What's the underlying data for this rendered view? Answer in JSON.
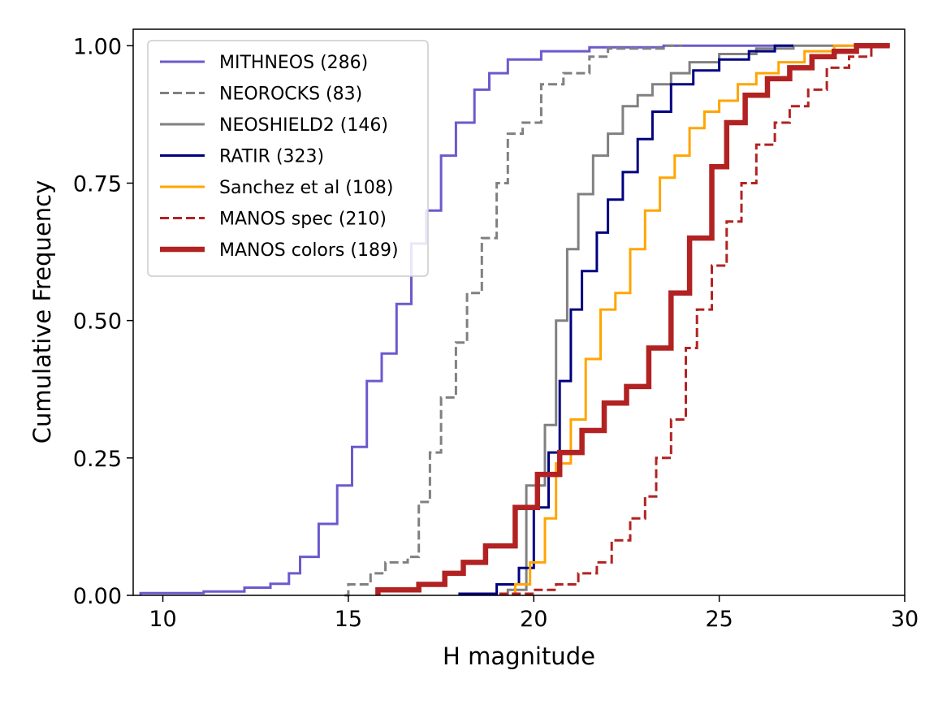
{
  "chart_data": {
    "type": "line",
    "subtype": "cumulative-step",
    "title": "",
    "xlabel": "H magnitude",
    "ylabel": "Cumulative Frequency",
    "xlim": [
      9.2,
      30
    ],
    "ylim": [
      0,
      1.03
    ],
    "xticks": [
      10,
      15,
      20,
      25,
      30
    ],
    "xtick_labels": [
      "10",
      "15",
      "20",
      "25",
      "30"
    ],
    "yticks": [
      0,
      0.25,
      0.5,
      0.75,
      1.0
    ],
    "ytick_labels": [
      "0.00",
      "0.25",
      "0.50",
      "0.75",
      "1.00"
    ],
    "grid": false,
    "legend_position": "top-left",
    "series": [
      {
        "name": "MITHNEOS (286)",
        "color": "#6a5acd",
        "style": "solid",
        "width": "normal",
        "points": [
          [
            9.4,
            0.0
          ],
          [
            9.4,
            0.004
          ],
          [
            11.1,
            0.004
          ],
          [
            11.1,
            0.007
          ],
          [
            12.2,
            0.007
          ],
          [
            12.2,
            0.014
          ],
          [
            12.9,
            0.014
          ],
          [
            12.9,
            0.021
          ],
          [
            13.4,
            0.021
          ],
          [
            13.4,
            0.04
          ],
          [
            13.7,
            0.04
          ],
          [
            13.7,
            0.07
          ],
          [
            14.2,
            0.07
          ],
          [
            14.2,
            0.13
          ],
          [
            14.7,
            0.13
          ],
          [
            14.7,
            0.2
          ],
          [
            15.1,
            0.2
          ],
          [
            15.1,
            0.27
          ],
          [
            15.5,
            0.27
          ],
          [
            15.5,
            0.39
          ],
          [
            15.9,
            0.39
          ],
          [
            15.9,
            0.44
          ],
          [
            16.3,
            0.44
          ],
          [
            16.3,
            0.53
          ],
          [
            16.7,
            0.53
          ],
          [
            16.7,
            0.64
          ],
          [
            17.1,
            0.64
          ],
          [
            17.1,
            0.7
          ],
          [
            17.5,
            0.7
          ],
          [
            17.5,
            0.8
          ],
          [
            17.9,
            0.8
          ],
          [
            17.9,
            0.86
          ],
          [
            18.4,
            0.86
          ],
          [
            18.4,
            0.92
          ],
          [
            18.8,
            0.92
          ],
          [
            18.8,
            0.95
          ],
          [
            19.3,
            0.95
          ],
          [
            19.3,
            0.975
          ],
          [
            20.2,
            0.975
          ],
          [
            20.2,
            0.99
          ],
          [
            21.5,
            0.99
          ],
          [
            21.5,
            0.997
          ],
          [
            23.5,
            0.997
          ],
          [
            23.5,
            1.0
          ],
          [
            27.0,
            1.0
          ]
        ]
      },
      {
        "name": "NEOROCKS (83)",
        "color": "#808080",
        "style": "dashed",
        "width": "normal",
        "points": [
          [
            14.9,
            0.0
          ],
          [
            15.0,
            0.0
          ],
          [
            15.0,
            0.02
          ],
          [
            15.6,
            0.02
          ],
          [
            15.6,
            0.04
          ],
          [
            16.0,
            0.04
          ],
          [
            16.0,
            0.06
          ],
          [
            16.6,
            0.06
          ],
          [
            16.6,
            0.07
          ],
          [
            16.9,
            0.07
          ],
          [
            16.9,
            0.17
          ],
          [
            17.2,
            0.17
          ],
          [
            17.2,
            0.26
          ],
          [
            17.5,
            0.26
          ],
          [
            17.5,
            0.36
          ],
          [
            17.9,
            0.36
          ],
          [
            17.9,
            0.46
          ],
          [
            18.2,
            0.46
          ],
          [
            18.2,
            0.55
          ],
          [
            18.6,
            0.55
          ],
          [
            18.6,
            0.65
          ],
          [
            19.0,
            0.65
          ],
          [
            19.0,
            0.75
          ],
          [
            19.3,
            0.75
          ],
          [
            19.3,
            0.84
          ],
          [
            19.7,
            0.84
          ],
          [
            19.7,
            0.86
          ],
          [
            20.2,
            0.86
          ],
          [
            20.2,
            0.93
          ],
          [
            20.8,
            0.93
          ],
          [
            20.8,
            0.95
          ],
          [
            21.5,
            0.95
          ],
          [
            21.5,
            0.98
          ],
          [
            22.0,
            0.98
          ],
          [
            22.0,
            0.995
          ],
          [
            23.5,
            0.995
          ],
          [
            23.5,
            1.0
          ],
          [
            24.0,
            1.0
          ]
        ]
      },
      {
        "name": "NEOSHIELD2 (146)",
        "color": "#808080",
        "style": "solid",
        "width": "normal",
        "points": [
          [
            19.3,
            0.0
          ],
          [
            19.3,
            0.01
          ],
          [
            19.8,
            0.01
          ],
          [
            19.8,
            0.2
          ],
          [
            20.3,
            0.2
          ],
          [
            20.3,
            0.31
          ],
          [
            20.6,
            0.31
          ],
          [
            20.6,
            0.5
          ],
          [
            20.9,
            0.5
          ],
          [
            20.9,
            0.63
          ],
          [
            21.2,
            0.63
          ],
          [
            21.2,
            0.73
          ],
          [
            21.6,
            0.73
          ],
          [
            21.6,
            0.8
          ],
          [
            22.0,
            0.8
          ],
          [
            22.0,
            0.84
          ],
          [
            22.4,
            0.84
          ],
          [
            22.4,
            0.89
          ],
          [
            22.8,
            0.89
          ],
          [
            22.8,
            0.91
          ],
          [
            23.2,
            0.91
          ],
          [
            23.2,
            0.93
          ],
          [
            23.7,
            0.93
          ],
          [
            23.7,
            0.95
          ],
          [
            24.2,
            0.95
          ],
          [
            24.2,
            0.97
          ],
          [
            25.0,
            0.97
          ],
          [
            25.0,
            0.985
          ],
          [
            26.0,
            0.985
          ],
          [
            26.0,
            0.995
          ],
          [
            27.0,
            0.995
          ],
          [
            27.0,
            1.0
          ],
          [
            28.5,
            1.0
          ]
        ]
      },
      {
        "name": "RATIR (323)",
        "color": "#000080",
        "style": "solid",
        "width": "normal",
        "points": [
          [
            18.0,
            0.0
          ],
          [
            18.0,
            0.003
          ],
          [
            19.0,
            0.003
          ],
          [
            19.0,
            0.02
          ],
          [
            19.6,
            0.02
          ],
          [
            19.6,
            0.05
          ],
          [
            20.0,
            0.05
          ],
          [
            20.0,
            0.16
          ],
          [
            20.4,
            0.16
          ],
          [
            20.4,
            0.26
          ],
          [
            20.7,
            0.26
          ],
          [
            20.7,
            0.39
          ],
          [
            21.0,
            0.39
          ],
          [
            21.0,
            0.52
          ],
          [
            21.3,
            0.52
          ],
          [
            21.3,
            0.59
          ],
          [
            21.7,
            0.59
          ],
          [
            21.7,
            0.66
          ],
          [
            22.0,
            0.66
          ],
          [
            22.0,
            0.72
          ],
          [
            22.4,
            0.72
          ],
          [
            22.4,
            0.77
          ],
          [
            22.8,
            0.77
          ],
          [
            22.8,
            0.83
          ],
          [
            23.2,
            0.83
          ],
          [
            23.2,
            0.88
          ],
          [
            23.7,
            0.88
          ],
          [
            23.7,
            0.93
          ],
          [
            24.3,
            0.93
          ],
          [
            24.3,
            0.955
          ],
          [
            25.0,
            0.955
          ],
          [
            25.0,
            0.975
          ],
          [
            25.8,
            0.975
          ],
          [
            25.8,
            0.99
          ],
          [
            26.5,
            0.99
          ],
          [
            26.5,
            1.0
          ],
          [
            27.0,
            1.0
          ]
        ]
      },
      {
        "name": "Sanchez et al (108)",
        "color": "#ffa500",
        "style": "solid",
        "width": "normal",
        "points": [
          [
            19.5,
            0.0
          ],
          [
            19.5,
            0.02
          ],
          [
            19.9,
            0.02
          ],
          [
            19.9,
            0.06
          ],
          [
            20.3,
            0.06
          ],
          [
            20.3,
            0.14
          ],
          [
            20.6,
            0.14
          ],
          [
            20.6,
            0.24
          ],
          [
            21.0,
            0.24
          ],
          [
            21.0,
            0.32
          ],
          [
            21.4,
            0.32
          ],
          [
            21.4,
            0.43
          ],
          [
            21.8,
            0.43
          ],
          [
            21.8,
            0.52
          ],
          [
            22.2,
            0.52
          ],
          [
            22.2,
            0.55
          ],
          [
            22.6,
            0.55
          ],
          [
            22.6,
            0.63
          ],
          [
            23.0,
            0.63
          ],
          [
            23.0,
            0.7
          ],
          [
            23.4,
            0.7
          ],
          [
            23.4,
            0.76
          ],
          [
            23.8,
            0.76
          ],
          [
            23.8,
            0.8
          ],
          [
            24.2,
            0.8
          ],
          [
            24.2,
            0.85
          ],
          [
            24.6,
            0.85
          ],
          [
            24.6,
            0.88
          ],
          [
            25.0,
            0.88
          ],
          [
            25.0,
            0.9
          ],
          [
            25.5,
            0.9
          ],
          [
            25.5,
            0.93
          ],
          [
            26.0,
            0.93
          ],
          [
            26.0,
            0.95
          ],
          [
            26.6,
            0.95
          ],
          [
            26.6,
            0.97
          ],
          [
            27.3,
            0.97
          ],
          [
            27.3,
            0.99
          ],
          [
            28.1,
            0.99
          ],
          [
            28.1,
            1.0
          ],
          [
            29.0,
            1.0
          ]
        ]
      },
      {
        "name": "MANOS spec (210)",
        "color": "#b22222",
        "style": "dashed",
        "width": "normal",
        "points": [
          [
            19.1,
            0.0
          ],
          [
            19.1,
            0.003
          ],
          [
            20.0,
            0.003
          ],
          [
            20.0,
            0.01
          ],
          [
            20.6,
            0.01
          ],
          [
            20.6,
            0.02
          ],
          [
            21.2,
            0.02
          ],
          [
            21.2,
            0.04
          ],
          [
            21.7,
            0.04
          ],
          [
            21.7,
            0.06
          ],
          [
            22.1,
            0.06
          ],
          [
            22.1,
            0.1
          ],
          [
            22.6,
            0.1
          ],
          [
            22.6,
            0.14
          ],
          [
            23.0,
            0.14
          ],
          [
            23.0,
            0.18
          ],
          [
            23.3,
            0.18
          ],
          [
            23.3,
            0.25
          ],
          [
            23.7,
            0.25
          ],
          [
            23.7,
            0.32
          ],
          [
            24.1,
            0.32
          ],
          [
            24.1,
            0.45
          ],
          [
            24.4,
            0.45
          ],
          [
            24.4,
            0.52
          ],
          [
            24.8,
            0.52
          ],
          [
            24.8,
            0.6
          ],
          [
            25.2,
            0.6
          ],
          [
            25.2,
            0.68
          ],
          [
            25.6,
            0.68
          ],
          [
            25.6,
            0.75
          ],
          [
            26.0,
            0.75
          ],
          [
            26.0,
            0.82
          ],
          [
            26.5,
            0.82
          ],
          [
            26.5,
            0.86
          ],
          [
            26.9,
            0.86
          ],
          [
            26.9,
            0.89
          ],
          [
            27.4,
            0.89
          ],
          [
            27.4,
            0.92
          ],
          [
            27.9,
            0.92
          ],
          [
            27.9,
            0.96
          ],
          [
            28.5,
            0.96
          ],
          [
            28.5,
            0.98
          ],
          [
            29.1,
            0.98
          ],
          [
            29.1,
            1.0
          ],
          [
            29.6,
            1.0
          ]
        ]
      },
      {
        "name": "MANOS colors (189)",
        "color": "#b22222",
        "style": "solid",
        "width": "thick",
        "points": [
          [
            15.8,
            0.0
          ],
          [
            15.8,
            0.01
          ],
          [
            16.9,
            0.01
          ],
          [
            16.9,
            0.02
          ],
          [
            17.6,
            0.02
          ],
          [
            17.6,
            0.04
          ],
          [
            18.1,
            0.04
          ],
          [
            18.1,
            0.06
          ],
          [
            18.7,
            0.06
          ],
          [
            18.7,
            0.09
          ],
          [
            19.5,
            0.09
          ],
          [
            19.5,
            0.16
          ],
          [
            20.1,
            0.16
          ],
          [
            20.1,
            0.22
          ],
          [
            20.7,
            0.22
          ],
          [
            20.7,
            0.26
          ],
          [
            21.3,
            0.26
          ],
          [
            21.3,
            0.3
          ],
          [
            21.9,
            0.3
          ],
          [
            21.9,
            0.35
          ],
          [
            22.5,
            0.35
          ],
          [
            22.5,
            0.38
          ],
          [
            23.1,
            0.38
          ],
          [
            23.1,
            0.45
          ],
          [
            23.7,
            0.45
          ],
          [
            23.7,
            0.55
          ],
          [
            24.2,
            0.55
          ],
          [
            24.2,
            0.65
          ],
          [
            24.8,
            0.65
          ],
          [
            24.8,
            0.78
          ],
          [
            25.2,
            0.78
          ],
          [
            25.2,
            0.86
          ],
          [
            25.7,
            0.86
          ],
          [
            25.7,
            0.91
          ],
          [
            26.3,
            0.91
          ],
          [
            26.3,
            0.94
          ],
          [
            26.9,
            0.94
          ],
          [
            26.9,
            0.96
          ],
          [
            27.5,
            0.96
          ],
          [
            27.5,
            0.98
          ],
          [
            28.1,
            0.98
          ],
          [
            28.1,
            0.99
          ],
          [
            28.7,
            0.99
          ],
          [
            28.7,
            1.0
          ],
          [
            29.6,
            1.0
          ]
        ]
      }
    ]
  }
}
